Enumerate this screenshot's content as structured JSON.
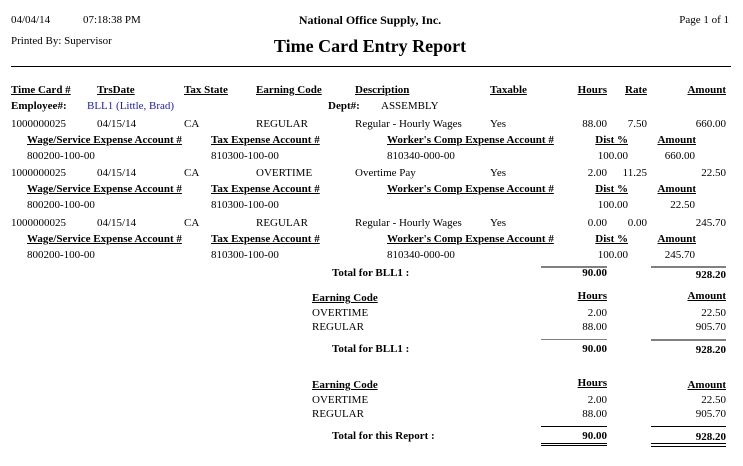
{
  "header": {
    "date": "04/04/14",
    "time": "07:18:38 PM",
    "company": "National Office Supply, Inc.",
    "page": "Page 1 of 1",
    "printed_by": "Printed By: Supervisor",
    "title": "Time Card Entry Report"
  },
  "columns": {
    "timecard": "Time Card #",
    "trsdate": "TrsDate",
    "taxstate": "Tax State",
    "earning": "Earning Code",
    "description": "Description",
    "taxable": "Taxable",
    "hours": "Hours",
    "rate": "Rate",
    "amount": "Amount"
  },
  "employee": {
    "label": "Employee#:",
    "value": "BLL1 (Little, Brad)",
    "dept_label": "Dept#:",
    "dept_value": "ASSEMBLY",
    "link_color": "#1a1acc"
  },
  "sub_columns": {
    "wage": "Wage/Service Expense Account #",
    "tax": "Tax Expense Account #",
    "wc": "Worker's Comp Expense Account #",
    "dist": "Dist %",
    "amount": "Amount"
  },
  "entries": [
    {
      "timecard": "1000000025",
      "date": "04/15/14",
      "state": "CA",
      "earning": "REGULAR",
      "description": "Regular - Hourly Wages",
      "taxable": "Yes",
      "hours": "88.00",
      "rate": "7.50",
      "amount": "660.00",
      "wage_acct": "800200-100-00",
      "tax_acct": "810300-100-00",
      "wc_acct": "810340-000-00",
      "dist": "100.00",
      "dist_amount": "660.00"
    },
    {
      "timecard": "1000000025",
      "date": "04/15/14",
      "state": "CA",
      "earning": "OVERTIME",
      "description": "Overtime Pay",
      "taxable": "Yes",
      "hours": "2.00",
      "rate": "11.25",
      "amount": "22.50",
      "wage_acct": "800200-100-00",
      "tax_acct": "810300-100-00",
      "wc_acct": "",
      "dist": "100.00",
      "dist_amount": "22.50"
    },
    {
      "timecard": "1000000025",
      "date": "04/15/14",
      "state": "CA",
      "earning": "REGULAR",
      "description": "Regular - Hourly Wages",
      "taxable": "Yes",
      "hours": "0.00",
      "rate": "0.00",
      "amount": "245.70",
      "wage_acct": "800200-100-00",
      "tax_acct": "810300-100-00",
      "wc_acct": "810340-000-00",
      "dist": "100.00",
      "dist_amount": "245.70"
    }
  ],
  "employee_total": {
    "label": "Total for BLL1 :",
    "hours": "90.00",
    "amount": "928.20"
  },
  "summaries": [
    {
      "hdr_code": "Earning Code",
      "hdr_hours": "Hours",
      "hdr_amount": "Amount",
      "rows": [
        {
          "code": "OVERTIME",
          "hours": "2.00",
          "amount": "22.50"
        },
        {
          "code": "REGULAR",
          "hours": "88.00",
          "amount": "905.70"
        }
      ],
      "total_label": "Total for BLL1 :",
      "total_hours": "90.00",
      "total_amount": "928.20"
    },
    {
      "hdr_code": "Earning Code",
      "hdr_hours": "Hours",
      "hdr_amount": "Amount",
      "rows": [
        {
          "code": "OVERTIME",
          "hours": "2.00",
          "amount": "22.50"
        },
        {
          "code": "REGULAR",
          "hours": "88.00",
          "amount": "905.70"
        }
      ],
      "total_label": "Total for this Report :",
      "total_hours": "90.00",
      "total_amount": "928.20"
    }
  ]
}
